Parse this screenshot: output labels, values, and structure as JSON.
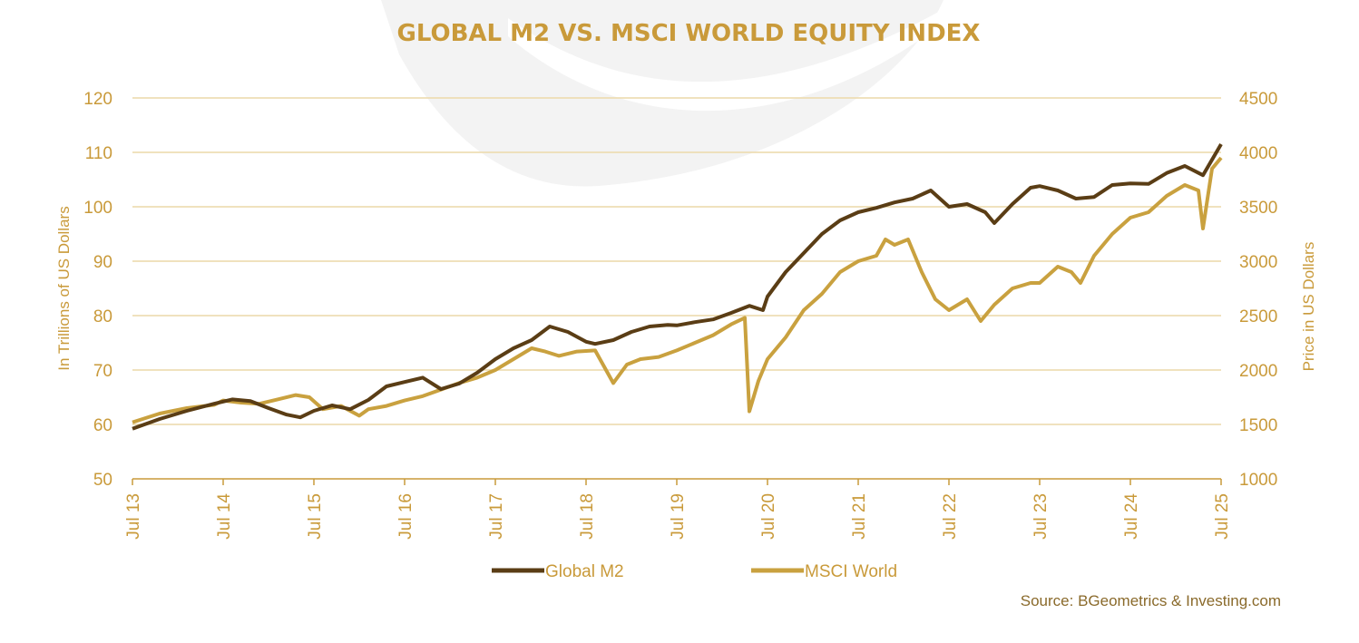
{
  "colors": {
    "accent": "#c99a3a",
    "gold_series": "#c9a13f",
    "brown_series": "#5a3d15",
    "grid": "#ecd9a9",
    "watermark": "#f2f2f2",
    "source_text": "#8a6a2b"
  },
  "chart_data": {
    "type": "line",
    "title": "GLOBAL M2 VS. MSCI WORLD EQUITY INDEX",
    "ylabel_left": "In Trillions of US Dollars",
    "ylabel_right": "Price in US Dollars",
    "ylim_left": [
      50,
      120
    ],
    "ylim_right": [
      1000,
      4500
    ],
    "yticks_left": [
      "50",
      "60",
      "70",
      "80",
      "90",
      "100",
      "110",
      "120"
    ],
    "yticks_right": [
      "1000",
      "1500",
      "2000",
      "2500",
      "3000",
      "3500",
      "4000",
      "4500"
    ],
    "xticks": [
      "Jul 13",
      "Jul 14",
      "Jul 15",
      "Jul 16",
      "Jul 17",
      "Jul 18",
      "Jul 19",
      "Jul 20",
      "Jul 21",
      "Jul 22",
      "Jul 23",
      "Jul 24",
      "Jul 25"
    ],
    "x_unit": "years since Jul 2013",
    "grid": "horizontal",
    "legend_position": "bottom",
    "source": "Source: BGeometrics & Investing.com",
    "series": [
      {
        "name": "Global M2",
        "axis": "left",
        "color": "#5a3d15",
        "x": [
          0.0,
          0.3,
          0.6,
          0.9,
          1.1,
          1.3,
          1.5,
          1.7,
          1.85,
          2.0,
          2.2,
          2.4,
          2.6,
          2.8,
          3.0,
          3.2,
          3.4,
          3.6,
          3.8,
          4.0,
          4.2,
          4.4,
          4.6,
          4.8,
          5.0,
          5.1,
          5.3,
          5.5,
          5.7,
          5.9,
          6.0,
          6.2,
          6.4,
          6.6,
          6.8,
          6.95,
          7.0,
          7.2,
          7.4,
          7.6,
          7.8,
          8.0,
          8.2,
          8.4,
          8.6,
          8.8,
          9.0,
          9.2,
          9.4,
          9.5,
          9.7,
          9.9,
          10.0,
          10.2,
          10.4,
          10.6,
          10.8,
          11.0,
          11.2,
          11.4,
          11.6,
          11.8,
          12.0
        ],
        "values": [
          59.2,
          61.0,
          62.5,
          63.8,
          64.6,
          64.3,
          63.0,
          61.8,
          61.3,
          62.5,
          63.5,
          62.8,
          64.5,
          67.0,
          67.8,
          68.6,
          66.5,
          67.5,
          69.5,
          72.0,
          74.0,
          75.5,
          78.0,
          77.0,
          75.2,
          74.8,
          75.5,
          77.0,
          78.0,
          78.3,
          78.2,
          78.8,
          79.3,
          80.5,
          81.8,
          81.0,
          83.5,
          88.0,
          91.5,
          95.0,
          97.5,
          99.0,
          99.8,
          100.8,
          101.5,
          103.0,
          100.0,
          100.5,
          99.0,
          97.0,
          100.5,
          103.5,
          103.8,
          103.0,
          101.5,
          101.8,
          104.0,
          104.3,
          104.2,
          106.2,
          107.5,
          105.8,
          111.5
        ]
      },
      {
        "name": "MSCI World",
        "axis": "right",
        "color": "#c9a13f",
        "x": [
          0.0,
          0.3,
          0.6,
          0.9,
          1.0,
          1.2,
          1.4,
          1.6,
          1.8,
          1.95,
          2.1,
          2.3,
          2.5,
          2.6,
          2.8,
          3.0,
          3.2,
          3.4,
          3.6,
          3.8,
          4.0,
          4.2,
          4.4,
          4.55,
          4.7,
          4.9,
          5.1,
          5.3,
          5.45,
          5.6,
          5.8,
          6.0,
          6.2,
          6.4,
          6.6,
          6.75,
          6.8,
          6.9,
          7.0,
          7.2,
          7.4,
          7.6,
          7.8,
          8.0,
          8.2,
          8.3,
          8.4,
          8.55,
          8.7,
          8.85,
          9.0,
          9.2,
          9.35,
          9.5,
          9.7,
          9.9,
          10.0,
          10.2,
          10.35,
          10.45,
          10.6,
          10.8,
          11.0,
          11.2,
          11.4,
          11.6,
          11.75,
          11.8,
          11.9,
          12.0
        ],
        "values": [
          1520,
          1600,
          1650,
          1680,
          1720,
          1700,
          1690,
          1730,
          1770,
          1750,
          1640,
          1670,
          1580,
          1640,
          1670,
          1720,
          1760,
          1820,
          1880,
          1930,
          2000,
          2100,
          2200,
          2170,
          2130,
          2170,
          2180,
          1880,
          2050,
          2100,
          2120,
          2180,
          2250,
          2320,
          2420,
          2480,
          1620,
          1900,
          2100,
          2300,
          2550,
          2700,
          2900,
          3000,
          3050,
          3200,
          3150,
          3200,
          2900,
          2650,
          2550,
          2650,
          2450,
          2600,
          2750,
          2800,
          2800,
          2950,
          2900,
          2800,
          3050,
          3250,
          3400,
          3450,
          3600,
          3700,
          3650,
          3300,
          3850,
          3950
        ]
      }
    ]
  }
}
